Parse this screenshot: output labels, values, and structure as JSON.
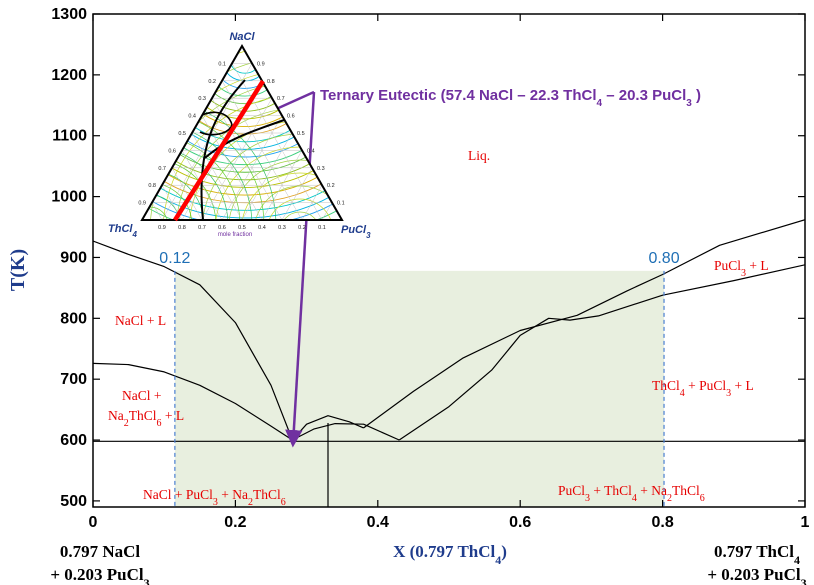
{
  "chart_data": {
    "type": "line",
    "title": "",
    "xlabel": "X (0.797 ThCl4)",
    "ylabel": "T(K)",
    "xlim": [
      0,
      1
    ],
    "ylim": [
      490,
      1300
    ],
    "xticks": [
      "0",
      "0.2",
      "0.4",
      "0.6",
      "0.8",
      "1"
    ],
    "yticks": [
      "500",
      "600",
      "700",
      "800",
      "900",
      "1000",
      "1100",
      "1200",
      "1300"
    ],
    "grid": false,
    "endpoint_labels": {
      "left": {
        "line1": "0.797 NaCl",
        "line2": "+ 0.203 PuCl3"
      },
      "right": {
        "line1": "0.797 ThCl4",
        "line2": "+ 0.203 PuCl3"
      }
    },
    "highlight_region": {
      "x": [
        0.115,
        0.802
      ],
      "y": [
        490,
        878
      ],
      "color": "#e8efdf"
    },
    "bounds": [
      {
        "x": 0.115,
        "label": "0.12"
      },
      {
        "x": 0.802,
        "label": "0.80"
      }
    ],
    "region_labels": {
      "liquid": "Liq.",
      "nacl_l": "NaCl + L",
      "nacl_na2_l_1": "NaCl +",
      "nacl_na2_l_2": "Na2ThCl6 + L",
      "pucl3_l": "PuCl3 + L",
      "thcl4_pucl3_l": "ThCl4 + PuCl3 + L",
      "solid_left": "NaCl + PuCl3 + Na2ThCl6",
      "solid_right": "PuCl3 + ThCl4 + Na2ThCl6"
    },
    "annotation": "Ternary Eutectic (57.4 NaCl – 22.3 ThCl4 – 20.3 PuCl3 )",
    "eutectic_point": {
      "x": 0.28,
      "y": 598
    },
    "series": [
      {
        "points": [
          [
            0,
            927
          ],
          [
            0.05,
            905
          ],
          [
            0.1,
            885
          ],
          [
            0.15,
            855
          ],
          [
            0.2,
            793
          ],
          [
            0.25,
            690
          ],
          [
            0.28,
            600
          ]
        ]
      },
      {
        "points": [
          [
            0,
            726
          ],
          [
            0.05,
            724
          ],
          [
            0.1,
            712
          ],
          [
            0.15,
            690
          ],
          [
            0.2,
            660
          ],
          [
            0.25,
            623
          ],
          [
            0.28,
            600
          ]
        ]
      },
      {
        "points": [
          [
            0.28,
            600
          ],
          [
            0.3,
            626
          ],
          [
            0.33,
            640
          ],
          [
            0.36,
            630
          ],
          [
            0.38,
            620
          ]
        ]
      },
      {
        "points": [
          [
            0.28,
            600
          ],
          [
            0.31,
            618
          ],
          [
            0.34,
            627
          ],
          [
            0.38,
            626
          ],
          [
            0.43,
            600
          ]
        ]
      },
      {
        "points": [
          [
            0.38,
            620
          ],
          [
            0.45,
            680
          ],
          [
            0.52,
            735
          ],
          [
            0.6,
            780
          ],
          [
            0.68,
            805
          ],
          [
            0.75,
            845
          ],
          [
            0.8,
            872
          ],
          [
            0.88,
            920
          ],
          [
            1.0,
            962
          ]
        ]
      },
      {
        "points": [
          [
            0.43,
            600
          ],
          [
            0.5,
            655
          ],
          [
            0.56,
            715
          ],
          [
            0.6,
            772
          ],
          [
            0.64,
            800
          ],
          [
            0.67,
            797
          ],
          [
            0.71,
            804
          ],
          [
            0.8,
            838
          ],
          [
            0.9,
            862
          ],
          [
            1.0,
            888
          ]
        ]
      },
      {
        "points": [
          [
            0,
            598
          ],
          [
            1,
            598
          ]
        ]
      },
      {
        "points": [
          [
            0.33,
            490
          ],
          [
            0.33,
            628
          ]
        ]
      }
    ],
    "inset": {
      "type": "ternary",
      "vertices": {
        "top": "NaCl",
        "left": "ThCl4",
        "right": "PuCl3"
      },
      "axis_caption": "mole fraction",
      "scale_labels": [
        "0.9",
        "0.8",
        "0.7",
        "0.6",
        "0.5",
        "0.4",
        "0.3",
        "0.2",
        "0.1"
      ]
    },
    "colors": {
      "curve": "#000000",
      "region_text": "#e60000",
      "bound_line": "#4a7fd0",
      "annotation": "#7030a0",
      "axis_title": "#1f3c8c",
      "section_line": "#ff0000"
    }
  }
}
